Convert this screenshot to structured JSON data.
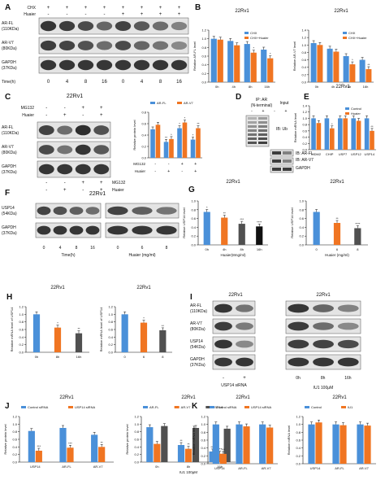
{
  "colors": {
    "blue": "#4a90d9",
    "orange": "#f07522",
    "gray": "#505050",
    "red": "#e02020",
    "blot_bg": "#e4e4e4",
    "band": "#1e1e1e"
  },
  "panels": [
    {
      "id": "A",
      "letter": "A",
      "header_title": "",
      "conditions": [
        {
          "label": "CHX",
          "signs": [
            "+",
            "+",
            "+",
            "+",
            "+",
            "+",
            "+",
            "+"
          ]
        },
        {
          "label": "Huaier",
          "signs": [
            "-",
            "-",
            "-",
            "-",
            "+",
            "+",
            "+",
            "+"
          ]
        }
      ],
      "blots": [
        {
          "label": "AR-FL",
          "sub": "(110KDa)",
          "bands": [
            0.9,
            0.85,
            0.75,
            0.55,
            0.8,
            0.65,
            0.5,
            0.35
          ]
        },
        {
          "label": "AR-V7",
          "sub": "(80KDa)",
          "bands": [
            0.85,
            0.8,
            0.7,
            0.5,
            0.75,
            0.55,
            0.45,
            0.3
          ]
        },
        {
          "label": "GAPDH",
          "sub": "(37KDa)",
          "bands": [
            0.9,
            0.9,
            0.9,
            0.9,
            0.9,
            0.9,
            0.9,
            0.9
          ]
        }
      ],
      "time_label": "Time(h)",
      "time_values": [
        "0",
        "4",
        "8",
        "16",
        "0",
        "4",
        "8",
        "16"
      ]
    },
    {
      "id": "C",
      "letter": "C",
      "header_title": "22Rv1",
      "conditions": [
        {
          "label": "MG132",
          "signs": [
            "-",
            "-",
            "+",
            "+"
          ]
        },
        {
          "label": "Huaier",
          "signs": [
            "-",
            "+",
            "-",
            "+"
          ]
        }
      ],
      "blots": [
        {
          "label": "AR-FL",
          "sub": "(110KDa)",
          "bands": [
            0.8,
            0.5,
            0.95,
            0.7
          ]
        },
        {
          "label": "AR-V7",
          "sub": "(80KDa)",
          "bands": [
            0.75,
            0.45,
            0.9,
            0.65
          ]
        },
        {
          "label": "GAPDH",
          "sub": "(37KDa)",
          "bands": [
            0.9,
            0.9,
            0.9,
            0.9
          ]
        }
      ],
      "bottom_labels": [
        "MG132",
        "Huaier"
      ],
      "bottom_signs": [
        [
          "-",
          "-",
          "+",
          "+"
        ],
        [
          "-",
          "+",
          "-",
          "+"
        ]
      ]
    },
    {
      "id": "D",
      "letter": "D",
      "header_title": "",
      "ip_label": "IP: AR",
      "ip_sub": "(N-terminal)",
      "input_label": "Input",
      "lane_signs": [
        "-",
        "+",
        "-",
        "+"
      ],
      "blot_labels": [
        "IB: Ub",
        "IB: AR-FL",
        "IB: AR-V7",
        "GAPDH"
      ]
    },
    {
      "id": "F",
      "letter": "F",
      "header_title": "22Rv1",
      "blots": [
        {
          "label": "USP14",
          "sub": "(54KDa)",
          "bands": [
            0.8,
            0.7,
            0.6,
            0.5,
            0.8,
            0.6,
            0.45
          ]
        },
        {
          "label": "GAPDH",
          "sub": "(37KDa)",
          "bands": [
            0.9,
            0.9,
            0.9,
            0.9,
            0.9,
            0.9,
            0.9
          ]
        }
      ],
      "left_values": [
        "0",
        "4",
        "8",
        "16"
      ],
      "left_axis": "Time(h)",
      "right_values": [
        "0",
        "6",
        "8"
      ],
      "right_axis": "Huaier (mg/ml)"
    },
    {
      "id": "I",
      "letter": "I",
      "header_left": "22Rv1",
      "header_right": "22Rv1",
      "blots": [
        {
          "label": "AR-FL",
          "sub": "(110KDa)"
        },
        {
          "label": "AR-V7",
          "sub": "(80KDa)"
        },
        {
          "label": "USP14",
          "sub": "(54KDa)"
        },
        {
          "label": "GAPDH",
          "sub": "(37KDa)"
        }
      ],
      "left_signs": [
        "-",
        "+"
      ],
      "left_axis": "USP14 siRNA",
      "right_values": [
        "0h",
        "8h",
        "16h"
      ],
      "right_axis": "IU1 100μM"
    }
  ],
  "chart_data": [
    {
      "id": "B1",
      "letter": "B",
      "type": "bar",
      "title": "22Rv1",
      "ylabel": "Relative AR-FL level",
      "xlabel": "",
      "categories": [
        "0h",
        "4h",
        "8h",
        "16h"
      ],
      "ylim": [
        0,
        1.2
      ],
      "yticks": [
        "0.0",
        "0.2",
        "0.4",
        "0.6",
        "0.8",
        "1.0",
        "1.2"
      ],
      "series": [
        {
          "name": "CHX",
          "values": [
            1.0,
            0.95,
            0.88,
            0.75
          ]
        },
        {
          "name": "CHX+Huaier",
          "values": [
            0.98,
            0.85,
            0.68,
            0.55
          ]
        }
      ],
      "stars": [
        [
          "",
          ""
        ],
        [
          "",
          ""
        ],
        [
          "",
          "*"
        ],
        [
          "",
          "*"
        ]
      ],
      "legend": "top-right"
    },
    {
      "id": "B2",
      "letter": "",
      "type": "bar",
      "title": "22Rv1",
      "ylabel": "Relative AR-V7 level",
      "xlabel": "",
      "categories": [
        "0h",
        "4h",
        "8h",
        "16h"
      ],
      "ylim": [
        0,
        1.4
      ],
      "yticks": [
        "0.0",
        "0.2",
        "0.4",
        "0.6",
        "0.8",
        "1.0",
        "1.2",
        "1.4"
      ],
      "series": [
        {
          "name": "CHX",
          "values": [
            1.05,
            0.9,
            0.7,
            0.6
          ]
        },
        {
          "name": "CHX+Huaier",
          "values": [
            1.0,
            0.82,
            0.48,
            0.35
          ]
        }
      ],
      "stars": [
        [
          "",
          ""
        ],
        [
          "",
          ""
        ],
        [
          "",
          "*"
        ],
        [
          "",
          "**"
        ]
      ],
      "legend": "top-right"
    },
    {
      "id": "C",
      "letter": "",
      "type": "bar",
      "title": "",
      "ylabel": "Relative protein level",
      "xlabel": "",
      "categories": [
        "",
        "",
        "",
        ""
      ],
      "ylim": [
        0,
        0.8
      ],
      "yticks": [
        "0.0",
        "0.2",
        "0.4",
        "0.6",
        "0.8"
      ],
      "series": [
        {
          "name": "AR-FL",
          "values": [
            0.5,
            0.28,
            0.52,
            0.32
          ]
        },
        {
          "name": "AR-V7",
          "values": [
            0.58,
            0.33,
            0.62,
            0.52
          ]
        }
      ],
      "stars": [
        [
          "",
          ""
        ],
        [
          "**",
          "*"
        ],
        [
          "*",
          "*"
        ],
        [
          "*",
          "**"
        ]
      ],
      "legend": "top",
      "bottom_rows": [
        {
          "label": "MG132",
          "signs": [
            "-",
            "-",
            "+",
            "+"
          ]
        },
        {
          "label": "Huaier",
          "signs": [
            "-",
            "+",
            "-",
            "+"
          ]
        }
      ]
    },
    {
      "id": "E",
      "letter": "E",
      "type": "bar",
      "title": "22Rv1",
      "ylabel": "Relative mRNA level",
      "xlabel": "",
      "categories": [
        "MDM2",
        "CHIP",
        "USP7",
        "USP12",
        "USP14"
      ],
      "ylim": [
        0,
        1.4
      ],
      "yticks": [
        "0.0",
        "0.2",
        "0.4",
        "0.6",
        "0.8",
        "1.0",
        "1.2",
        "1.4"
      ],
      "series": [
        {
          "name": "Control",
          "values": [
            1.0,
            1.0,
            1.0,
            1.0,
            1.0
          ]
        },
        {
          "name": "Huaier",
          "values": [
            0.85,
            0.68,
            1.0,
            0.92,
            0.6
          ]
        }
      ],
      "stars": [
        [
          "",
          ""
        ],
        [
          "",
          "*"
        ],
        [
          "",
          ""
        ],
        [
          "",
          ""
        ],
        [
          "",
          "**"
        ]
      ],
      "legend": "top-right"
    },
    {
      "id": "G1",
      "letter": "G",
      "type": "bar",
      "title": "22Rv1",
      "ylabel": "Relative USP14 level",
      "xlabel": "Huaier(8mg/ml)",
      "categories": [
        "0h",
        "4h",
        "8h",
        "16h"
      ],
      "ylim": [
        0,
        1.0
      ],
      "yticks": [
        "0.0",
        "0.2",
        "0.4",
        "0.6",
        "0.8",
        "1.0"
      ],
      "series": [
        {
          "name": "",
          "values": [
            0.75,
            0.62,
            0.48,
            0.42
          ],
          "colors": [
            "blue",
            "orange",
            "gray",
            "black"
          ]
        }
      ],
      "stars": [
        [
          "*"
        ],
        [
          "**"
        ],
        [
          "***"
        ],
        [
          "****"
        ]
      ],
      "legend": "none"
    },
    {
      "id": "G2",
      "letter": "",
      "type": "bar",
      "title": "22Rv1",
      "ylabel": "Relative USP14 level",
      "xlabel": "Huaier (mg/ml)",
      "categories": [
        "0",
        "6",
        "8"
      ],
      "ylim": [
        0,
        1.0
      ],
      "yticks": [
        "0.0",
        "0.2",
        "0.4",
        "0.6",
        "0.8",
        "1.0"
      ],
      "series": [
        {
          "name": "",
          "values": [
            0.75,
            0.5,
            0.38
          ],
          "colors": [
            "blue",
            "orange",
            "gray"
          ]
        }
      ],
      "stars": [
        [
          ""
        ],
        [
          "**"
        ],
        [
          "****"
        ]
      ],
      "legend": "none"
    },
    {
      "id": "H1",
      "letter": "H",
      "type": "bar",
      "title": "22Rv1",
      "ylabel": "Relative mRNA level of USP14",
      "xlabel": "",
      "categories": [
        "0h",
        "8h",
        "16h"
      ],
      "ylim": [
        0,
        1.2
      ],
      "yticks": [
        "0.0",
        "0.2",
        "0.4",
        "0.6",
        "0.8",
        "1.0",
        "1.2"
      ],
      "series": [
        {
          "name": "",
          "values": [
            1.0,
            0.65,
            0.5
          ],
          "colors": [
            "blue",
            "orange",
            "gray"
          ]
        }
      ],
      "stars": [
        [
          ""
        ],
        [
          "*"
        ],
        [
          "**"
        ]
      ],
      "legend": "none"
    },
    {
      "id": "H2",
      "letter": "",
      "type": "bar",
      "title": "22Rv1",
      "ylabel": "Relative mRNA level of USP14",
      "xlabel": "",
      "categories": [
        "0",
        "6",
        "8"
      ],
      "ylim": [
        0,
        1.2
      ],
      "yticks": [
        "0.0",
        "0.2",
        "0.4",
        "0.6",
        "0.8",
        "1.0",
        "1.2"
      ],
      "series": [
        {
          "name": "",
          "values": [
            1.0,
            0.78,
            0.58
          ],
          "colors": [
            "blue",
            "orange",
            "gray"
          ]
        }
      ],
      "stars": [
        [
          ""
        ],
        [
          "*"
        ],
        [
          "**"
        ]
      ],
      "legend": "none"
    },
    {
      "id": "J1",
      "letter": "J",
      "type": "bar",
      "title": "22Rv1",
      "ylabel": "Relative protein level",
      "xlabel": "",
      "categories": [
        "USP14",
        "AR-FL",
        "AR-V7"
      ],
      "ylim": [
        0,
        1.2
      ],
      "yticks": [
        "0.0",
        "0.2",
        "0.4",
        "0.6",
        "0.8",
        "1.0",
        "1.2"
      ],
      "series": [
        {
          "name": "Control siRNA",
          "values": [
            0.82,
            0.9,
            0.72
          ]
        },
        {
          "name": "USP14 siRNA",
          "values": [
            0.3,
            0.38,
            0.4
          ]
        }
      ],
      "stars": [
        [
          "",
          "***"
        ],
        [
          "",
          "***"
        ],
        [
          "",
          "**"
        ]
      ],
      "legend": "top"
    },
    {
      "id": "J2",
      "letter": "",
      "type": "bar",
      "title": "22Rv1",
      "ylabel": "Relative protein level",
      "xlabel": "IU1 100μM",
      "categories": [
        "0h",
        "8h",
        "16h"
      ],
      "ylim": [
        0,
        1.2
      ],
      "yticks": [
        "0.0",
        "0.2",
        "0.4",
        "0.6",
        "0.8",
        "1.0",
        "1.2"
      ],
      "series": [
        {
          "name": "AR-FL",
          "values": [
            0.92,
            0.45,
            0.28
          ]
        },
        {
          "name": "AR-V7",
          "values": [
            0.48,
            0.35,
            0.22
          ]
        },
        {
          "name": "USP14",
          "values": [
            0.95,
            0.9,
            0.88
          ]
        }
      ],
      "stars": [
        [
          "",
          "",
          ""
        ],
        [
          "**",
          "**",
          ""
        ],
        [
          "***",
          "***",
          ""
        ]
      ],
      "legend": "top"
    },
    {
      "id": "K1",
      "letter": "K",
      "type": "bar",
      "title": "22Rv1",
      "ylabel": "Relative mRNA level",
      "xlabel": "",
      "categories": [
        "USP14",
        "AR-FL",
        "AR-V7"
      ],
      "ylim": [
        0,
        1.2
      ],
      "yticks": [
        "0.0",
        "0.2",
        "0.4",
        "0.6",
        "0.8",
        "1.0",
        "1.2"
      ],
      "series": [
        {
          "name": "Control siRNA",
          "values": [
            1.0,
            1.0,
            1.0
          ]
        },
        {
          "name": "USP14 siRNA",
          "values": [
            0.25,
            0.95,
            0.92
          ]
        }
      ],
      "stars": [
        [
          "",
          "***"
        ],
        [
          "",
          ""
        ],
        [
          "",
          ""
        ]
      ],
      "legend": "top"
    },
    {
      "id": "K2",
      "letter": "",
      "type": "bar",
      "title": "22Rv1",
      "ylabel": "Relative mRNA level",
      "xlabel": "",
      "categories": [
        "USP14",
        "AR-FL",
        "AR-V7"
      ],
      "ylim": [
        0,
        1.2
      ],
      "yticks": [
        "0.0",
        "0.2",
        "0.4",
        "0.6",
        "0.8",
        "1.0",
        "1.2"
      ],
      "series": [
        {
          "name": "Control",
          "values": [
            1.0,
            1.0,
            1.0
          ]
        },
        {
          "name": "IU1",
          "values": [
            1.05,
            0.98,
            0.97
          ]
        }
      ],
      "stars": [
        [
          "",
          ""
        ],
        [
          "",
          ""
        ],
        [
          "",
          ""
        ]
      ],
      "legend": "top"
    }
  ]
}
